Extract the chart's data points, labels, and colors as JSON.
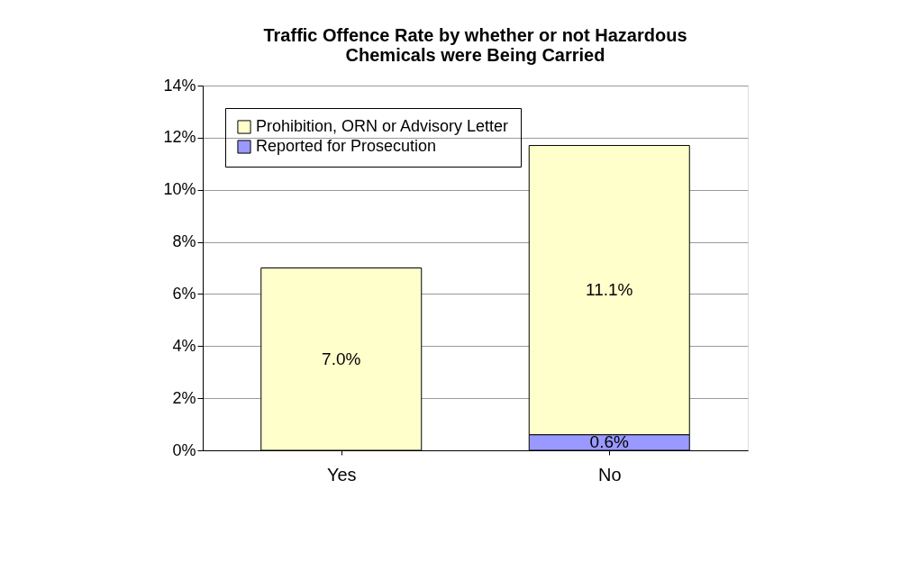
{
  "chart_data": {
    "type": "bar",
    "stacked": true,
    "title": "Traffic Offence Rate by whether or not Hazardous Chemicals were Being Carried",
    "categories": [
      "Yes",
      "No"
    ],
    "series": [
      {
        "name": "Reported for Prosecution",
        "color": "#9999ff",
        "values": [
          null,
          0.6
        ],
        "value_labels": [
          null,
          "0.6%"
        ]
      },
      {
        "name": "Prohibition, ORN or Advisory Letter",
        "color": "#ffffcc",
        "values": [
          7.0,
          11.1
        ],
        "value_labels": [
          "7.0%",
          "11.1%"
        ]
      }
    ],
    "ylim": [
      0,
      14
    ],
    "yticks": [
      {
        "value": 0,
        "label": "0%"
      },
      {
        "value": 2,
        "label": "2%"
      },
      {
        "value": 4,
        "label": "4%"
      },
      {
        "value": 6,
        "label": "6%"
      },
      {
        "value": 8,
        "label": "8%"
      },
      {
        "value": 10,
        "label": "10%"
      },
      {
        "value": 12,
        "label": "12%"
      },
      {
        "value": 14,
        "label": "14%"
      }
    ],
    "grid": "y",
    "legend": "top left"
  }
}
